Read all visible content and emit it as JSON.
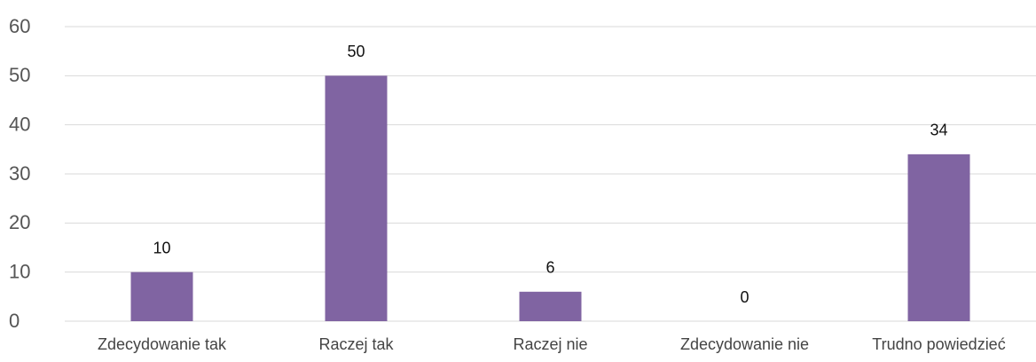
{
  "chart_data": {
    "type": "bar",
    "categories": [
      "Zdecydowanie tak",
      "Raczej tak",
      "Raczej nie",
      "Zdecydowanie nie",
      "Trudno powiedzieć"
    ],
    "values": [
      10,
      50,
      6,
      0,
      34
    ],
    "color": "#8064a2",
    "ylim": [
      0,
      60
    ],
    "yticks": [
      0,
      10,
      20,
      30,
      40,
      50,
      60
    ],
    "grid": true,
    "data_labels": true
  }
}
